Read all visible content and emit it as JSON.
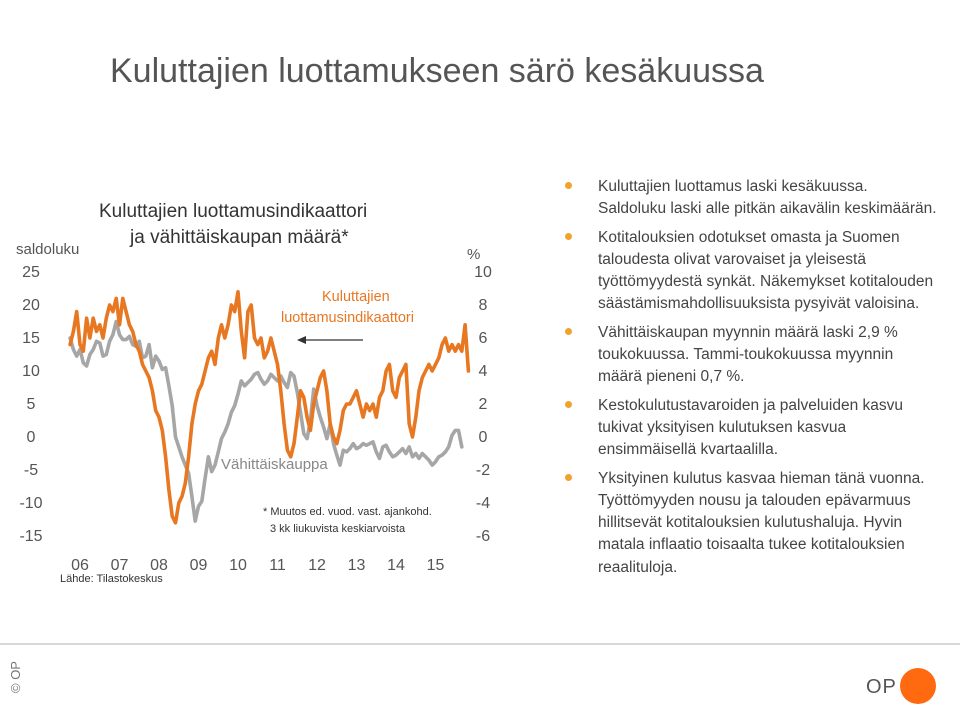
{
  "title": "Kuluttajien luottamukseen särö kesäkuussa",
  "chart": {
    "title_line1": "Kuluttajien luottamusindikaattori",
    "title_line2": "ja vähittäiskaupan määrä*",
    "left_unit": "saldoluku",
    "right_unit": "%",
    "left_ticks": [
      "25",
      "20",
      "15",
      "10",
      "5",
      "0",
      "-5",
      "-10",
      "-15"
    ],
    "right_ticks": [
      "10",
      "8",
      "6",
      "4",
      "2",
      "0",
      "-2",
      "-4",
      "-6"
    ],
    "x_ticks": [
      "06",
      "07",
      "08",
      "09",
      "10",
      "11",
      "12",
      "13",
      "14",
      "15"
    ],
    "annotation_orange_1": "Kuluttajien",
    "annotation_orange_2": "luottamusindikaattori",
    "annotation_gray": "Vähittäiskauppa",
    "note_1": "* Muutos ed. vuod. vast. ajankohd.",
    "note_2": "3 kk liukuvista keskiarvoista",
    "source": "Lähde: Tilastokeskus"
  },
  "chart_data": {
    "type": "line",
    "x_start": "2005-10",
    "x_step": "month",
    "y_left_range": [
      -15,
      25
    ],
    "y_right_range": [
      -6,
      10
    ],
    "series": [
      {
        "name": "Kuluttajien luottamusindikaattori",
        "axis": "left",
        "color": "#e87722",
        "values": [
          14,
          16,
          19,
          14,
          13,
          18,
          15,
          18,
          16,
          17,
          15,
          18,
          20,
          19,
          21,
          17,
          21,
          19,
          17,
          16,
          14,
          13,
          11,
          10,
          9,
          7,
          4,
          3,
          1,
          -3,
          -8,
          -12,
          -13,
          -10,
          -9,
          -7,
          -3,
          2,
          5,
          7,
          8,
          10,
          12,
          13,
          11,
          15,
          17,
          15,
          17,
          20,
          19,
          22,
          16,
          12,
          19,
          20,
          15,
          14,
          15,
          12,
          13,
          15,
          13,
          11,
          7,
          2,
          -2,
          -3,
          -1,
          3,
          7,
          6,
          3,
          1,
          5,
          7,
          9,
          10,
          7,
          2,
          0,
          -1,
          1,
          4,
          5,
          5,
          6,
          7,
          5,
          3,
          5,
          4,
          5,
          3,
          6,
          7,
          10,
          11,
          7,
          6,
          9,
          10,
          11,
          2,
          0,
          3,
          7,
          9,
          10,
          11,
          10,
          11,
          12,
          14,
          15,
          13,
          14,
          13,
          14,
          13,
          17,
          10
        ]
      },
      {
        "name": "Vähittäiskauppa",
        "axis": "right",
        "color": "#a6a6a6",
        "values": [
          6,
          5.3,
          4.9,
          5.3,
          4.5,
          4.3,
          5,
          5.3,
          5.8,
          5.7,
          4.9,
          5,
          5.8,
          6.2,
          7,
          6.2,
          5.9,
          5.9,
          6.1,
          5.6,
          5.5,
          5.8,
          4.8,
          4.9,
          5.6,
          4.2,
          4.9,
          4.6,
          4.1,
          4.2,
          3.1,
          1.9,
          0,
          -0.6,
          -1.2,
          -1.7,
          -2.2,
          -3.6,
          -5.1,
          -4.2,
          -3.9,
          -2.5,
          -1.2,
          -2.1,
          -1.7,
          -0.9,
          -0.1,
          0.3,
          0.8,
          1.5,
          1.9,
          2.6,
          3.4,
          3.1,
          3.3,
          3.5,
          3.8,
          3.9,
          3.5,
          3.2,
          3.4,
          3.8,
          3.6,
          3.4,
          3.7,
          3.3,
          3,
          3.9,
          3.7,
          2.7,
          1.5,
          0.2,
          -0.1,
          1,
          2.9,
          1.9,
          1.2,
          0.6,
          -0.1,
          0.8,
          -0.4,
          -1.1,
          -1.7,
          -0.8,
          -0.9,
          -0.7,
          -0.4,
          -0.7,
          -0.6,
          -0.4,
          -0.5,
          -0.4,
          -0.3,
          -0.9,
          -1.3,
          -0.6,
          -0.5,
          -0.9,
          -1.2,
          -1.1,
          -0.9,
          -0.7,
          -1.0,
          -0.6,
          -1.2,
          -1.0,
          -1.3,
          -1.0,
          -1.2,
          -1.4,
          -1.7,
          -1.5,
          -1.2,
          -1.1,
          -0.9,
          -0.6,
          0.1,
          0.4,
          0.4,
          -0.6
        ]
      }
    ],
    "grid": false,
    "legend": "inline labels"
  },
  "bullets": [
    "Kuluttajien luottamus laski kesäkuussa. Saldoluku laski alle pitkän aikavälin keskimäärän.",
    "Kotitalouksien odotukset omasta ja Suomen taloudesta olivat varovaiset ja yleisestä työttömyydestä synkät. Näkemykset kotitalouden säästämismahdollisuuksista pysyivät valoisina.",
    "Vähittäiskaupan myynnin määrä laski 2,9 % toukokuussa. Tammi-toukokuussa myynnin määrä pieneni 0,7 %.",
    "Kestokulutustavaroiden ja palveluiden kasvu tukivat yksityisen kulutuksen kasvua ensimmäisellä kvartaalilla.",
    "Yksityinen kulutus kasvaa hieman tänä vuonna. Työttömyyden nousu ja talouden epävarmuus hillitsevät kotitalouksien kulutushaluja. Hyvin matala inflaatio toisaalta tukee kotitalouksien reaalituloja."
  ],
  "footer": {
    "copyright": "© OP",
    "logo_text": "OP"
  }
}
